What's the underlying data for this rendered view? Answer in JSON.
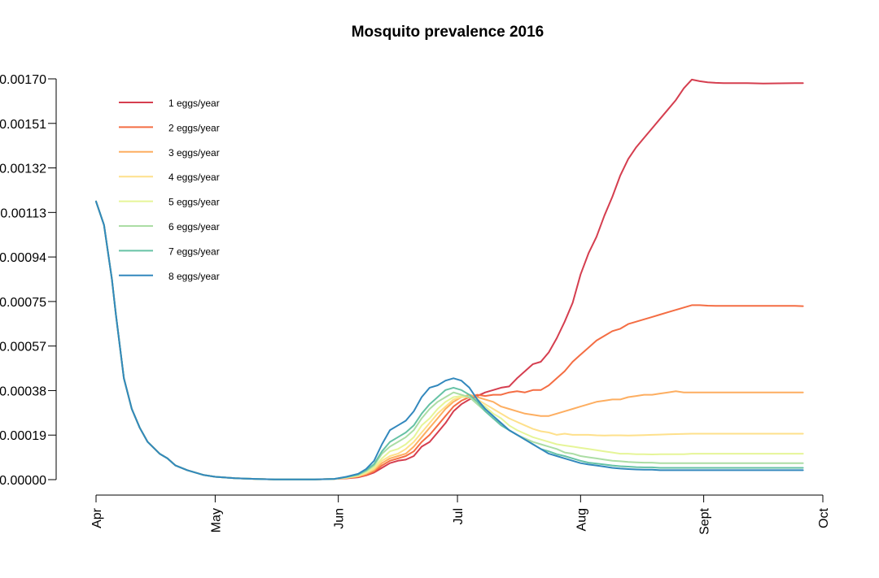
{
  "chart_data": {
    "type": "line",
    "title": "Mosquito prevalence 2016",
    "xlabel": "",
    "ylabel": "",
    "x_ticks": [
      {
        "label": "Apr",
        "day": 0
      },
      {
        "label": "May",
        "day": 30
      },
      {
        "label": "Jun",
        "day": 61
      },
      {
        "label": "Jul",
        "day": 91
      },
      {
        "label": "Aug",
        "day": 122
      },
      {
        "label": "Sept",
        "day": 153
      },
      {
        "label": "Oct",
        "day": 183
      }
    ],
    "y_ticks": [
      "0.00000",
      "0.00019",
      "0.00038",
      "0.00057",
      "0.00075",
      "0.00094",
      "0.00113",
      "0.00132",
      "0.00151",
      "0.00170"
    ],
    "ylim": [
      0,
      0.0017
    ],
    "grid": false,
    "legend_position": "top-left",
    "x": [
      "2016-04-01",
      "2016-04-03",
      "2016-04-05",
      "2016-04-06",
      "2016-04-08",
      "2016-04-10",
      "2016-04-12",
      "2016-04-14",
      "2016-04-17",
      "2016-04-19",
      "2016-04-21",
      "2016-04-24",
      "2016-04-28",
      "2016-05-01",
      "2016-05-06",
      "2016-05-11",
      "2016-05-16",
      "2016-05-21",
      "2016-05-26",
      "2016-05-31",
      "2016-06-03",
      "2016-06-06",
      "2016-06-08",
      "2016-06-10",
      "2016-06-12",
      "2016-06-14",
      "2016-06-16",
      "2016-06-18",
      "2016-06-20",
      "2016-06-22",
      "2016-06-24",
      "2016-06-26",
      "2016-06-28",
      "2016-06-30",
      "2016-07-02",
      "2016-07-04",
      "2016-07-06",
      "2016-07-08",
      "2016-07-10",
      "2016-07-12",
      "2016-07-14",
      "2016-07-16",
      "2016-07-18",
      "2016-07-20",
      "2016-07-22",
      "2016-07-24",
      "2016-07-26",
      "2016-07-28",
      "2016-07-30",
      "2016-08-01",
      "2016-08-03",
      "2016-08-05",
      "2016-08-07",
      "2016-08-09",
      "2016-08-11",
      "2016-08-13",
      "2016-08-15",
      "2016-08-17",
      "2016-08-19",
      "2016-08-21",
      "2016-08-23",
      "2016-08-25",
      "2016-08-27",
      "2016-08-29",
      "2016-08-31",
      "2016-09-02",
      "2016-09-04",
      "2016-09-06",
      "2016-09-08",
      "2016-09-12",
      "2016-09-16",
      "2016-09-20",
      "2016-09-24",
      "2016-09-26"
    ],
    "series": [
      {
        "name": "1 eggs/year",
        "color": "#d53e4f",
        "values": [
          0.00118,
          0.00108,
          0.00085,
          0.0007,
          0.00043,
          0.0003,
          0.00022,
          0.00016,
          0.00011,
          9e-05,
          6e-05,
          4e-05,
          2e-05,
          1.2e-05,
          6e-06,
          3e-06,
          1e-06,
          1e-06,
          1e-06,
          3e-06,
          5e-06,
          1e-05,
          1.8e-05,
          3e-05,
          5e-05,
          7e-05,
          8e-05,
          8.5e-05,
          0.0001,
          0.00014,
          0.00016,
          0.0002,
          0.00024,
          0.00029,
          0.00032,
          0.00034,
          0.000355,
          0.00037,
          0.00038,
          0.00039,
          0.000395,
          0.00043,
          0.00046,
          0.00049,
          0.0005,
          0.00054,
          0.0006,
          0.00067,
          0.00075,
          0.00087,
          0.00096,
          0.00103,
          0.00112,
          0.0012,
          0.00129,
          0.00136,
          0.00141,
          0.00145,
          0.00149,
          0.00153,
          0.00157,
          0.00161,
          0.00166,
          0.001697,
          0.00169,
          0.001685,
          0.001683,
          0.001682,
          0.001682,
          0.001682,
          0.00168,
          0.001681,
          0.001682,
          0.001682
        ]
      },
      {
        "name": "2 eggs/year",
        "color": "#f46d43",
        "values": [
          0.00118,
          0.00108,
          0.00085,
          0.0007,
          0.00043,
          0.0003,
          0.00022,
          0.00016,
          0.00011,
          9e-05,
          6e-05,
          4e-05,
          2e-05,
          1.2e-05,
          6e-06,
          3e-06,
          1e-06,
          1e-06,
          1e-06,
          3e-06,
          6e-06,
          1.2e-05,
          2e-05,
          3.5e-05,
          6e-05,
          8e-05,
          9e-05,
          0.0001,
          0.00012,
          0.00016,
          0.00019,
          0.00023,
          0.00027,
          0.00031,
          0.000335,
          0.00035,
          0.00036,
          0.000355,
          0.00036,
          0.00036,
          0.00037,
          0.000375,
          0.00037,
          0.00038,
          0.00038,
          0.0004,
          0.00043,
          0.00046,
          0.0005,
          0.00053,
          0.00056,
          0.00059,
          0.00061,
          0.00063,
          0.00064,
          0.00066,
          0.00067,
          0.00068,
          0.00069,
          0.0007,
          0.00071,
          0.00072,
          0.00073,
          0.00074,
          0.00074,
          0.000738,
          0.000737,
          0.000737,
          0.000737,
          0.000737,
          0.000737,
          0.000737,
          0.000737,
          0.000736
        ]
      },
      {
        "name": "3 eggs/year",
        "color": "#fdae61",
        "values": [
          0.00118,
          0.00108,
          0.00085,
          0.0007,
          0.00043,
          0.0003,
          0.00022,
          0.00016,
          0.00011,
          9e-05,
          6e-05,
          4e-05,
          2e-05,
          1.2e-05,
          6e-06,
          3e-06,
          1e-06,
          1e-06,
          1e-06,
          3e-06,
          7e-06,
          1.4e-05,
          2.4e-05,
          4e-05,
          7e-05,
          9e-05,
          0.0001,
          0.00011,
          0.00014,
          0.00018,
          0.00022,
          0.00026,
          0.0003,
          0.00033,
          0.00035,
          0.00036,
          0.00035,
          0.00034,
          0.00033,
          0.00031,
          0.0003,
          0.00029,
          0.00028,
          0.000275,
          0.00027,
          0.00027,
          0.00028,
          0.00029,
          0.0003,
          0.00031,
          0.00032,
          0.00033,
          0.000335,
          0.00034,
          0.00034,
          0.00035,
          0.000355,
          0.00036,
          0.00036,
          0.000365,
          0.00037,
          0.000375,
          0.00037,
          0.00037,
          0.00037,
          0.00037,
          0.00037,
          0.00037,
          0.00037,
          0.00037,
          0.00037,
          0.00037,
          0.00037,
          0.00037
        ]
      },
      {
        "name": "4 eggs/year",
        "color": "#fee08b",
        "values": [
          0.00118,
          0.00108,
          0.00085,
          0.0007,
          0.00043,
          0.0003,
          0.00022,
          0.00016,
          0.00011,
          9e-05,
          6e-05,
          4e-05,
          2e-05,
          1.2e-05,
          6e-06,
          3e-06,
          1e-06,
          1e-06,
          1e-06,
          3e-06,
          8e-06,
          1.6e-05,
          2.8e-05,
          4.6e-05,
          8e-05,
          0.0001,
          0.00011,
          0.00013,
          0.00016,
          0.0002,
          0.00024,
          0.00028,
          0.00031,
          0.00034,
          0.00035,
          0.00035,
          0.00034,
          0.00032,
          0.0003,
          0.00028,
          0.00026,
          0.000245,
          0.00023,
          0.000215,
          0.000205,
          0.0002,
          0.00019,
          0.000195,
          0.00019,
          0.00019,
          0.00019,
          0.000188,
          0.000187,
          0.000188,
          0.000188,
          0.000187,
          0.000188,
          0.000189,
          0.00019,
          0.000191,
          0.000192,
          0.000193,
          0.000194,
          0.000195,
          0.000195,
          0.000195,
          0.000195,
          0.000195,
          0.000195,
          0.000195,
          0.000195,
          0.000195,
          0.000195,
          0.000195
        ]
      },
      {
        "name": "5 eggs/year",
        "color": "#e6f598",
        "values": [
          0.00118,
          0.00108,
          0.00085,
          0.0007,
          0.00043,
          0.0003,
          0.00022,
          0.00016,
          0.00011,
          9e-05,
          6e-05,
          4e-05,
          2e-05,
          1.2e-05,
          6e-06,
          3e-06,
          1e-06,
          1e-06,
          1e-06,
          3e-06,
          9e-06,
          1.8e-05,
          3.2e-05,
          5.2e-05,
          9e-05,
          0.00012,
          0.00013,
          0.00015,
          0.00018,
          0.00023,
          0.00026,
          0.0003,
          0.00033,
          0.00035,
          0.000355,
          0.00035,
          0.00033,
          0.00031,
          0.00028,
          0.00026,
          0.00023,
          0.00021,
          0.000195,
          0.00018,
          0.00017,
          0.00016,
          0.00015,
          0.000145,
          0.00014,
          0.000135,
          0.00013,
          0.000125,
          0.00012,
          0.000115,
          0.00011,
          0.00011,
          0.000108,
          0.000108,
          0.000107,
          0.000108,
          0.000108,
          0.000108,
          0.000108,
          0.00011,
          0.00011,
          0.00011,
          0.00011,
          0.00011,
          0.00011,
          0.00011,
          0.00011,
          0.00011,
          0.00011,
          0.00011
        ]
      },
      {
        "name": "6 eggs/year",
        "color": "#abdda4",
        "values": [
          0.00118,
          0.00108,
          0.00085,
          0.0007,
          0.00043,
          0.0003,
          0.00022,
          0.00016,
          0.00011,
          9e-05,
          6e-05,
          4e-05,
          2e-05,
          1.2e-05,
          6e-06,
          3e-06,
          1e-06,
          1e-06,
          1e-06,
          3e-06,
          1e-05,
          2e-05,
          3.6e-05,
          6e-05,
          0.00011,
          0.00014,
          0.00016,
          0.00018,
          0.00021,
          0.00026,
          0.0003,
          0.00033,
          0.00035,
          0.00037,
          0.00036,
          0.00035,
          0.00032,
          0.00029,
          0.00026,
          0.00024,
          0.00021,
          0.00019,
          0.000175,
          0.00016,
          0.00015,
          0.00014,
          0.00013,
          0.000115,
          0.00011,
          0.0001,
          9.5e-05,
          9e-05,
          8.5e-05,
          8e-05,
          7.8e-05,
          7.5e-05,
          7.3e-05,
          7.2e-05,
          7.2e-05,
          7e-05,
          7e-05,
          7e-05,
          7e-05,
          7e-05,
          7e-05,
          7e-05,
          7e-05,
          7e-05,
          7e-05,
          7e-05,
          7e-05,
          7e-05,
          7e-05,
          7e-05
        ]
      },
      {
        "name": "7 eggs/year",
        "color": "#66c2a5",
        "values": [
          0.00118,
          0.00108,
          0.00085,
          0.0007,
          0.00043,
          0.0003,
          0.00022,
          0.00016,
          0.00011,
          9e-05,
          6e-05,
          4e-05,
          2e-05,
          1.2e-05,
          6e-06,
          3e-06,
          1e-06,
          1e-06,
          1e-06,
          3e-06,
          1.1e-05,
          2.2e-05,
          4e-05,
          6.6e-05,
          0.00012,
          0.00016,
          0.00018,
          0.0002,
          0.00023,
          0.00028,
          0.00032,
          0.00035,
          0.00038,
          0.00039,
          0.00038,
          0.00036,
          0.00033,
          0.00029,
          0.00026,
          0.00023,
          0.00021,
          0.00019,
          0.00017,
          0.00015,
          0.00013,
          0.00012,
          0.000108,
          0.0001,
          9e-05,
          8e-05,
          7.2e-05,
          6.8e-05,
          6.4e-05,
          6e-05,
          5.7e-05,
          5.5e-05,
          5.3e-05,
          5.2e-05,
          5.2e-05,
          5e-05,
          5e-05,
          5e-05,
          5e-05,
          5e-05,
          5e-05,
          5e-05,
          5e-05,
          5e-05,
          5e-05,
          5e-05,
          5e-05,
          5e-05,
          5e-05,
          5e-05
        ]
      },
      {
        "name": "8 eggs/year",
        "color": "#3288bd",
        "values": [
          0.00118,
          0.00108,
          0.00085,
          0.0007,
          0.00043,
          0.0003,
          0.00022,
          0.00016,
          0.00011,
          9e-05,
          6e-05,
          4e-05,
          2e-05,
          1.2e-05,
          6e-06,
          3e-06,
          1e-06,
          1e-06,
          1e-06,
          3e-06,
          1.2e-05,
          2.5e-05,
          4.5e-05,
          8e-05,
          0.00015,
          0.00021,
          0.00023,
          0.00025,
          0.00029,
          0.00035,
          0.00039,
          0.0004,
          0.00042,
          0.00043,
          0.00042,
          0.00039,
          0.00034,
          0.0003,
          0.00027,
          0.00024,
          0.00021,
          0.00019,
          0.00017,
          0.00015,
          0.00013,
          0.00011,
          0.0001,
          9e-05,
          8e-05,
          7e-05,
          6.4e-05,
          6e-05,
          5.5e-05,
          5e-05,
          4.7e-05,
          4.5e-05,
          4.3e-05,
          4.2e-05,
          4.2e-05,
          4e-05,
          4e-05,
          4e-05,
          4e-05,
          4e-05,
          4e-05,
          4e-05,
          4e-05,
          4e-05,
          4e-05,
          4e-05,
          4e-05,
          4e-05,
          4e-05,
          4e-05
        ]
      }
    ]
  }
}
